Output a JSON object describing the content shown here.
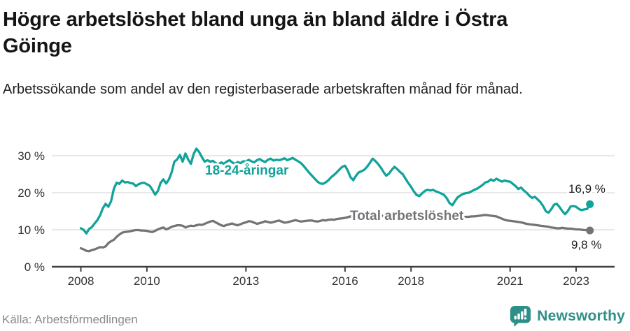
{
  "header": {
    "title_lines": [
      "Högre arbetslöshet bland unga än bland äldre i Östra",
      "Göinge"
    ],
    "subtitle": "Arbetssökande som andel av den registerbaserade arbetskraften månad för månad."
  },
  "footer": {
    "source": "Källa: Arbetsförmedlingen",
    "brand": "Newsworthy"
  },
  "chart_data": {
    "type": "line",
    "title": "Högre arbetslöshet bland unga än bland äldre i Östra Göinge",
    "subtitle": "Arbetssökande som andel av den registerbaserade arbetskraften månad för månad.",
    "source": "Källa: Arbetsförmedlingen",
    "frequency": "monthly",
    "x_start": "2008-01",
    "x_end": "2023-06",
    "x_tick_years": [
      2008,
      2010,
      2013,
      2016,
      2018,
      2021,
      2023
    ],
    "x_tick_labels": [
      "2008",
      "2010",
      "2013",
      "2016",
      "2018",
      "2021",
      "2023"
    ],
    "y_ticks": [
      0,
      10,
      20,
      30
    ],
    "y_tick_labels": [
      "0 %",
      "10 %",
      "20 %",
      "30 %"
    ],
    "ylim": [
      0,
      33
    ],
    "grid": "horizontal",
    "legend_position": "inline-labels",
    "colors": {
      "grid": "#d9d9d9",
      "axis": "#3f3f3f",
      "tick_text": "#333333",
      "value_text": "#1c1c1c",
      "accent_teal": "#10a39a",
      "accent_gray": "#757378",
      "brand_teal": "#2f8f88"
    },
    "series": [
      {
        "id": "total",
        "name": "Total arbetslöshet",
        "color": "#757378",
        "end_label": "9,8 %",
        "end_value": 9.8,
        "values": [
          5.0,
          4.7,
          4.3,
          4.2,
          4.5,
          4.7,
          5.0,
          5.3,
          5.2,
          5.5,
          6.4,
          6.9,
          7.3,
          8.1,
          8.7,
          9.2,
          9.4,
          9.5,
          9.6,
          9.8,
          9.9,
          9.9,
          9.8,
          9.8,
          9.7,
          9.5,
          9.4,
          9.7,
          10.1,
          10.4,
          10.6,
          10.1,
          10.4,
          10.8,
          11.0,
          11.2,
          11.2,
          11.1,
          10.6,
          10.9,
          11.1,
          11.0,
          11.2,
          11.4,
          11.3,
          11.6,
          11.9,
          12.2,
          12.4,
          12.0,
          11.6,
          11.2,
          11.0,
          11.3,
          11.5,
          11.7,
          11.4,
          11.2,
          11.5,
          11.8,
          12.0,
          12.3,
          12.2,
          11.9,
          11.6,
          11.8,
          12.0,
          12.3,
          12.1,
          11.9,
          12.1,
          12.3,
          12.5,
          12.2,
          11.9,
          12.0,
          12.2,
          12.4,
          12.6,
          12.4,
          12.2,
          12.3,
          12.4,
          12.5,
          12.5,
          12.3,
          12.2,
          12.4,
          12.6,
          12.5,
          12.7,
          12.8,
          12.7,
          12.9,
          13.0,
          13.1,
          13.2,
          13.4,
          13.6,
          13.4,
          13.2,
          13.3,
          13.5,
          13.6,
          13.4,
          13.3,
          13.4,
          13.5,
          13.6,
          13.7,
          13.8,
          13.7,
          13.6,
          13.7,
          13.8,
          13.7,
          13.6,
          13.5,
          13.4,
          13.3,
          13.2,
          13.1,
          13.0,
          12.9,
          12.8,
          12.8,
          12.9,
          12.8,
          12.7,
          12.6,
          12.6,
          12.7,
          12.8,
          12.9,
          13.0,
          13.1,
          13.2,
          13.3,
          13.4,
          13.4,
          13.5,
          13.5,
          13.6,
          13.6,
          13.7,
          13.8,
          13.9,
          14.0,
          13.9,
          13.8,
          13.7,
          13.6,
          13.3,
          13.0,
          12.7,
          12.5,
          12.4,
          12.3,
          12.2,
          12.1,
          12.0,
          11.8,
          11.6,
          11.5,
          11.4,
          11.3,
          11.2,
          11.1,
          11.0,
          10.9,
          10.8,
          10.6,
          10.5,
          10.4,
          10.4,
          10.5,
          10.4,
          10.3,
          10.3,
          10.2,
          10.1,
          10.1,
          10.0,
          9.9,
          9.9,
          9.8
        ]
      },
      {
        "id": "youth",
        "name": "18-24-åringar",
        "color": "#10a39a",
        "end_label": "16,9 %",
        "end_value": 16.9,
        "values": [
          10.4,
          10.0,
          9.0,
          10.2,
          10.7,
          11.7,
          12.6,
          13.9,
          15.8,
          17.0,
          16.2,
          17.7,
          21.1,
          22.7,
          22.4,
          23.3,
          22.8,
          22.9,
          22.6,
          22.5,
          21.8,
          22.3,
          22.6,
          22.7,
          22.3,
          21.9,
          20.8,
          19.5,
          20.5,
          22.7,
          23.6,
          22.5,
          23.6,
          25.5,
          28.4,
          29.0,
          30.2,
          28.4,
          30.6,
          29.0,
          27.8,
          30.5,
          31.9,
          31.0,
          29.6,
          28.4,
          28.8,
          28.4,
          28.6,
          28.0,
          27.6,
          28.2,
          27.8,
          28.4,
          28.8,
          28.2,
          27.8,
          28.3,
          28.0,
          28.5,
          28.4,
          28.9,
          28.5,
          28.2,
          28.8,
          29.1,
          28.6,
          28.3,
          28.9,
          29.2,
          28.7,
          28.9,
          28.8,
          29.0,
          29.3,
          28.8,
          29.1,
          29.4,
          28.9,
          28.5,
          28.0,
          27.2,
          26.3,
          25.4,
          24.6,
          23.8,
          23.0,
          22.5,
          22.4,
          22.8,
          23.4,
          24.2,
          24.8,
          25.5,
          26.3,
          27.0,
          27.3,
          26.0,
          24.2,
          23.4,
          24.6,
          25.5,
          25.8,
          26.2,
          27.0,
          28.0,
          29.2,
          28.6,
          27.8,
          26.8,
          25.6,
          24.6,
          25.2,
          26.2,
          27.0,
          26.4,
          25.6,
          25.0,
          23.8,
          22.6,
          21.6,
          20.4,
          19.4,
          19.1,
          19.8,
          20.5,
          20.8,
          20.6,
          20.8,
          20.4,
          20.1,
          19.8,
          19.4,
          18.5,
          17.2,
          16.6,
          17.8,
          18.8,
          19.3,
          19.7,
          19.9,
          20.0,
          20.4,
          20.8,
          21.1,
          21.6,
          22.1,
          22.8,
          23.0,
          23.6,
          23.2,
          23.8,
          23.4,
          23.0,
          23.3,
          23.1,
          23.0,
          22.4,
          21.8,
          21.0,
          21.4,
          20.6,
          20.0,
          19.2,
          18.6,
          18.9,
          18.2,
          17.5,
          16.4,
          15.0,
          14.6,
          15.6,
          16.8,
          17.0,
          16.1,
          15.0,
          14.2,
          15.1,
          16.3,
          16.4,
          16.2,
          15.6,
          15.3,
          15.5,
          15.6,
          16.9
        ]
      }
    ]
  }
}
